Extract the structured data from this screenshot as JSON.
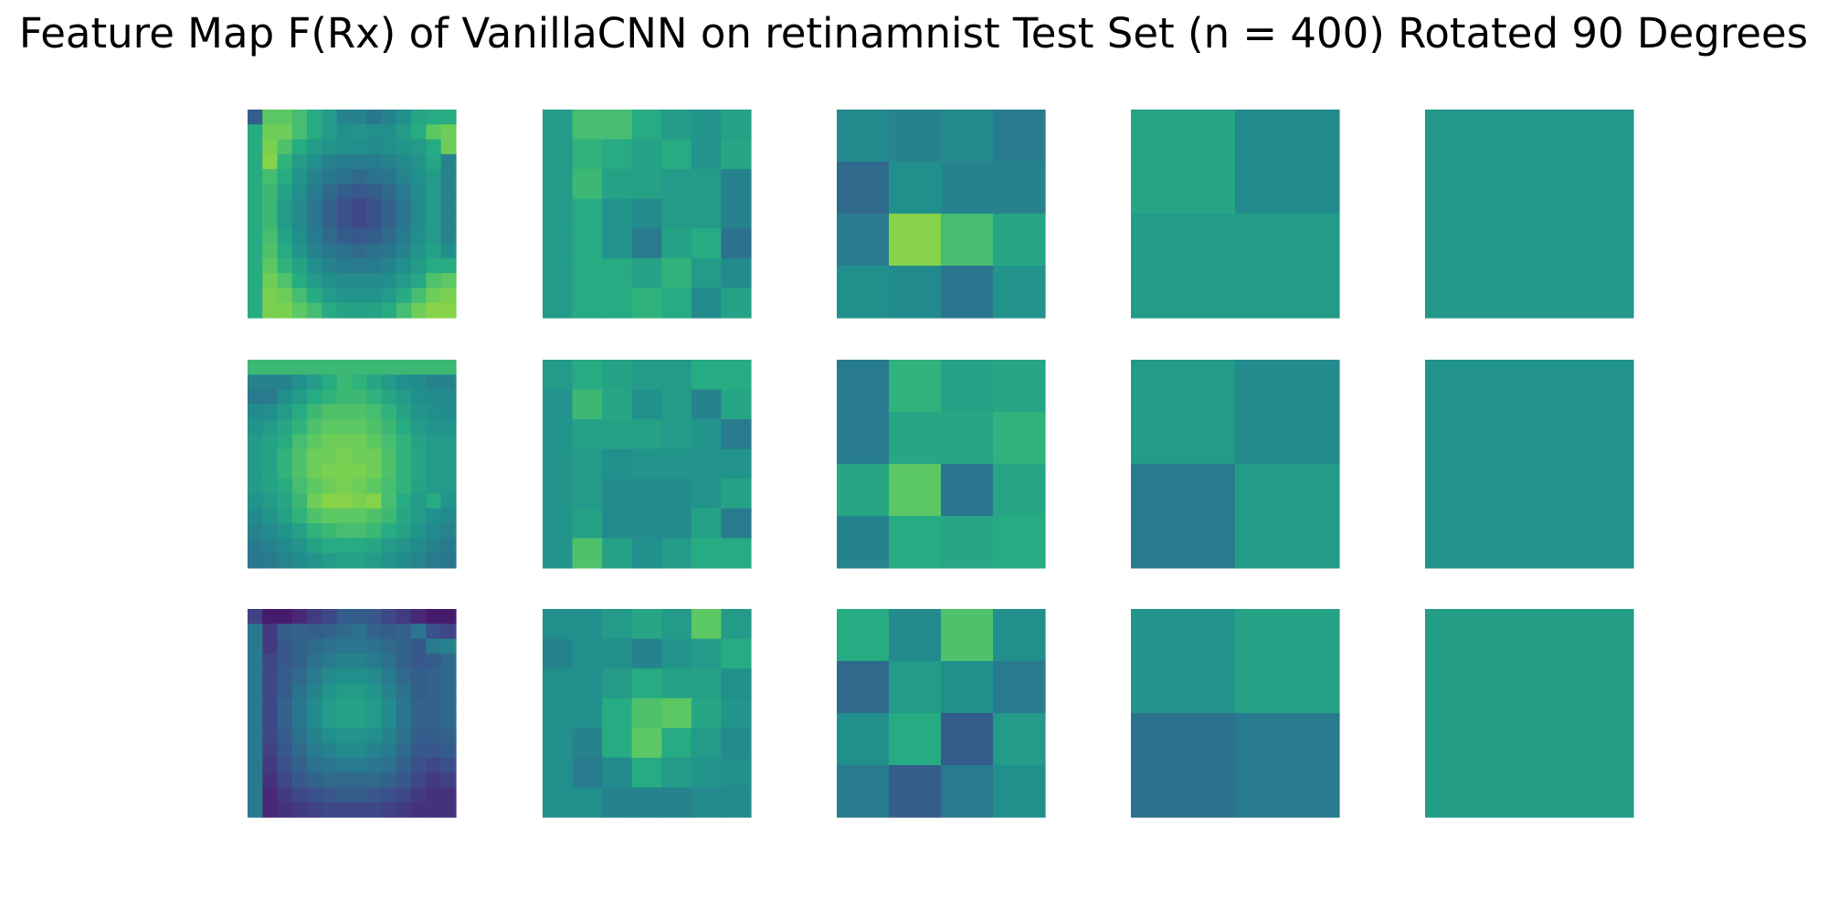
{
  "title": "Feature Map F(Rx) of VanillaCNN on retinamnist Test Set (n = 400) Rotated 90 Degrees",
  "chart_data": {
    "type": "heatmap",
    "title": "Feature Map F(Rx) of VanillaCNN on retinamnist Test Set (n = 400) Rotated 90 Degrees",
    "colormap": "viridis",
    "axes": "off",
    "layout": {
      "rows": 3,
      "columns": 5
    },
    "panel_resolutions": [
      14,
      7,
      4,
      2,
      1
    ],
    "value_range": [
      0,
      1
    ],
    "panels": [
      [
        [
          [
            0.3,
            0.75,
            0.75,
            0.7,
            0.62,
            0.55,
            0.45,
            0.45,
            0.4,
            0.45,
            0.5,
            0.6,
            0.62,
            0.62
          ],
          [
            0.62,
            0.78,
            0.78,
            0.7,
            0.62,
            0.55,
            0.5,
            0.52,
            0.5,
            0.5,
            0.55,
            0.62,
            0.75,
            0.78
          ],
          [
            0.62,
            0.8,
            0.72,
            0.62,
            0.55,
            0.52,
            0.5,
            0.5,
            0.48,
            0.5,
            0.52,
            0.55,
            0.62,
            0.78
          ],
          [
            0.62,
            0.82,
            0.65,
            0.55,
            0.5,
            0.45,
            0.42,
            0.42,
            0.42,
            0.45,
            0.48,
            0.52,
            0.6,
            0.45
          ],
          [
            0.62,
            0.7,
            0.62,
            0.52,
            0.45,
            0.4,
            0.38,
            0.35,
            0.38,
            0.4,
            0.45,
            0.5,
            0.55,
            0.45
          ],
          [
            0.62,
            0.68,
            0.58,
            0.5,
            0.42,
            0.35,
            0.3,
            0.28,
            0.3,
            0.35,
            0.42,
            0.48,
            0.55,
            0.45
          ],
          [
            0.62,
            0.68,
            0.55,
            0.48,
            0.4,
            0.32,
            0.25,
            0.22,
            0.25,
            0.32,
            0.4,
            0.48,
            0.55,
            0.45
          ],
          [
            0.62,
            0.68,
            0.55,
            0.48,
            0.4,
            0.32,
            0.25,
            0.22,
            0.25,
            0.32,
            0.4,
            0.48,
            0.55,
            0.45
          ],
          [
            0.62,
            0.7,
            0.58,
            0.5,
            0.42,
            0.35,
            0.3,
            0.28,
            0.3,
            0.35,
            0.42,
            0.5,
            0.55,
            0.45
          ],
          [
            0.62,
            0.72,
            0.62,
            0.52,
            0.45,
            0.4,
            0.38,
            0.35,
            0.38,
            0.4,
            0.45,
            0.52,
            0.58,
            0.5
          ],
          [
            0.62,
            0.75,
            0.65,
            0.58,
            0.5,
            0.45,
            0.42,
            0.42,
            0.42,
            0.45,
            0.5,
            0.55,
            0.62,
            0.62
          ],
          [
            0.62,
            0.78,
            0.72,
            0.62,
            0.55,
            0.5,
            0.48,
            0.48,
            0.48,
            0.5,
            0.55,
            0.6,
            0.72,
            0.75
          ],
          [
            0.62,
            0.8,
            0.78,
            0.7,
            0.62,
            0.55,
            0.52,
            0.52,
            0.52,
            0.55,
            0.62,
            0.7,
            0.78,
            0.8
          ],
          [
            0.62,
            0.8,
            0.8,
            0.75,
            0.7,
            0.62,
            0.58,
            0.58,
            0.58,
            0.62,
            0.7,
            0.78,
            0.82,
            0.82
          ]
        ],
        [
          [
            0.55,
            0.7,
            0.7,
            0.62,
            0.55,
            0.52,
            0.58
          ],
          [
            0.55,
            0.65,
            0.62,
            0.58,
            0.62,
            0.52,
            0.6
          ],
          [
            0.55,
            0.68,
            0.58,
            0.58,
            0.55,
            0.55,
            0.45
          ],
          [
            0.55,
            0.62,
            0.52,
            0.48,
            0.55,
            0.55,
            0.45
          ],
          [
            0.55,
            0.62,
            0.52,
            0.42,
            0.58,
            0.62,
            0.38
          ],
          [
            0.55,
            0.62,
            0.62,
            0.58,
            0.65,
            0.55,
            0.48
          ],
          [
            0.55,
            0.62,
            0.62,
            0.65,
            0.62,
            0.48,
            0.58
          ]
        ],
        [
          [
            0.48,
            0.45,
            0.48,
            0.42
          ],
          [
            0.35,
            0.5,
            0.45,
            0.45
          ],
          [
            0.42,
            0.82,
            0.7,
            0.6
          ],
          [
            0.5,
            0.48,
            0.4,
            0.52
          ]
        ],
        [
          [
            0.6,
            0.48
          ],
          [
            0.55,
            0.55
          ]
        ],
        [
          [
            0.53
          ]
        ]
      ],
      [
        [
          [
            0.68,
            0.68,
            0.68,
            0.68,
            0.68,
            0.68,
            0.68,
            0.68,
            0.68,
            0.68,
            0.68,
            0.68,
            0.68,
            0.68
          ],
          [
            0.45,
            0.45,
            0.45,
            0.5,
            0.55,
            0.62,
            0.68,
            0.65,
            0.6,
            0.55,
            0.5,
            0.48,
            0.45,
            0.45
          ],
          [
            0.42,
            0.42,
            0.5,
            0.55,
            0.62,
            0.65,
            0.68,
            0.68,
            0.65,
            0.6,
            0.55,
            0.5,
            0.48,
            0.48
          ],
          [
            0.48,
            0.5,
            0.55,
            0.62,
            0.68,
            0.72,
            0.72,
            0.72,
            0.7,
            0.65,
            0.58,
            0.52,
            0.5,
            0.48
          ],
          [
            0.52,
            0.55,
            0.6,
            0.65,
            0.72,
            0.75,
            0.75,
            0.75,
            0.72,
            0.68,
            0.62,
            0.55,
            0.52,
            0.52
          ],
          [
            0.55,
            0.58,
            0.62,
            0.7,
            0.75,
            0.78,
            0.78,
            0.78,
            0.75,
            0.7,
            0.65,
            0.58,
            0.55,
            0.55
          ],
          [
            0.55,
            0.58,
            0.65,
            0.72,
            0.78,
            0.78,
            0.8,
            0.78,
            0.78,
            0.72,
            0.65,
            0.6,
            0.55,
            0.55
          ],
          [
            0.55,
            0.58,
            0.65,
            0.72,
            0.78,
            0.8,
            0.8,
            0.8,
            0.78,
            0.72,
            0.65,
            0.6,
            0.55,
            0.55
          ],
          [
            0.55,
            0.58,
            0.62,
            0.7,
            0.75,
            0.78,
            0.8,
            0.78,
            0.75,
            0.7,
            0.65,
            0.58,
            0.55,
            0.55
          ],
          [
            0.52,
            0.55,
            0.6,
            0.68,
            0.78,
            0.82,
            0.82,
            0.8,
            0.82,
            0.7,
            0.62,
            0.55,
            0.62,
            0.52
          ],
          [
            0.48,
            0.52,
            0.58,
            0.65,
            0.72,
            0.75,
            0.75,
            0.75,
            0.72,
            0.68,
            0.6,
            0.55,
            0.5,
            0.48
          ],
          [
            0.45,
            0.48,
            0.52,
            0.58,
            0.65,
            0.68,
            0.7,
            0.7,
            0.68,
            0.62,
            0.58,
            0.52,
            0.48,
            0.45
          ],
          [
            0.42,
            0.45,
            0.48,
            0.52,
            0.58,
            0.62,
            0.62,
            0.62,
            0.6,
            0.55,
            0.52,
            0.48,
            0.45,
            0.42
          ],
          [
            0.4,
            0.42,
            0.45,
            0.48,
            0.52,
            0.55,
            0.58,
            0.58,
            0.55,
            0.52,
            0.48,
            0.45,
            0.42,
            0.4
          ]
        ],
        [
          [
            0.55,
            0.62,
            0.58,
            0.55,
            0.55,
            0.62,
            0.62
          ],
          [
            0.52,
            0.68,
            0.6,
            0.5,
            0.55,
            0.45,
            0.6
          ],
          [
            0.52,
            0.58,
            0.58,
            0.58,
            0.55,
            0.52,
            0.42
          ],
          [
            0.52,
            0.55,
            0.5,
            0.52,
            0.52,
            0.52,
            0.52
          ],
          [
            0.52,
            0.55,
            0.48,
            0.48,
            0.48,
            0.52,
            0.58
          ],
          [
            0.52,
            0.58,
            0.48,
            0.48,
            0.48,
            0.58,
            0.42
          ],
          [
            0.52,
            0.72,
            0.58,
            0.5,
            0.55,
            0.62,
            0.62
          ]
        ],
        [
          [
            0.42,
            0.65,
            0.58,
            0.6
          ],
          [
            0.42,
            0.6,
            0.6,
            0.65
          ],
          [
            0.6,
            0.75,
            0.4,
            0.6
          ],
          [
            0.45,
            0.62,
            0.6,
            0.62
          ]
        ],
        [
          [
            0.55,
            0.48
          ],
          [
            0.42,
            0.55
          ]
        ],
        [
          [
            0.51
          ]
        ]
      ],
      [
        [
          [
            0.2,
            0.08,
            0.08,
            0.12,
            0.18,
            0.22,
            0.3,
            0.3,
            0.28,
            0.22,
            0.18,
            0.12,
            0.08,
            0.08
          ],
          [
            0.42,
            0.18,
            0.3,
            0.32,
            0.3,
            0.32,
            0.35,
            0.38,
            0.32,
            0.3,
            0.32,
            0.4,
            0.25,
            0.22
          ],
          [
            0.42,
            0.18,
            0.28,
            0.32,
            0.35,
            0.38,
            0.4,
            0.4,
            0.38,
            0.35,
            0.32,
            0.28,
            0.42,
            0.45
          ],
          [
            0.42,
            0.22,
            0.28,
            0.32,
            0.38,
            0.42,
            0.45,
            0.45,
            0.42,
            0.38,
            0.32,
            0.28,
            0.3,
            0.35
          ],
          [
            0.42,
            0.22,
            0.3,
            0.35,
            0.42,
            0.48,
            0.5,
            0.5,
            0.48,
            0.42,
            0.35,
            0.3,
            0.32,
            0.35
          ],
          [
            0.42,
            0.22,
            0.3,
            0.38,
            0.45,
            0.52,
            0.55,
            0.55,
            0.52,
            0.45,
            0.38,
            0.3,
            0.32,
            0.35
          ],
          [
            0.42,
            0.22,
            0.32,
            0.4,
            0.48,
            0.55,
            0.58,
            0.58,
            0.55,
            0.48,
            0.4,
            0.32,
            0.32,
            0.35
          ],
          [
            0.42,
            0.22,
            0.32,
            0.4,
            0.48,
            0.55,
            0.58,
            0.58,
            0.55,
            0.48,
            0.4,
            0.32,
            0.32,
            0.35
          ],
          [
            0.42,
            0.22,
            0.3,
            0.38,
            0.45,
            0.5,
            0.52,
            0.52,
            0.5,
            0.45,
            0.38,
            0.3,
            0.3,
            0.32
          ],
          [
            0.42,
            0.2,
            0.28,
            0.35,
            0.42,
            0.45,
            0.48,
            0.48,
            0.45,
            0.42,
            0.35,
            0.28,
            0.28,
            0.3
          ],
          [
            0.42,
            0.18,
            0.25,
            0.32,
            0.38,
            0.4,
            0.42,
            0.42,
            0.4,
            0.38,
            0.32,
            0.25,
            0.22,
            0.25
          ],
          [
            0.42,
            0.15,
            0.22,
            0.28,
            0.32,
            0.35,
            0.35,
            0.35,
            0.35,
            0.32,
            0.28,
            0.22,
            0.18,
            0.2
          ],
          [
            0.42,
            0.12,
            0.18,
            0.22,
            0.25,
            0.28,
            0.3,
            0.3,
            0.28,
            0.25,
            0.22,
            0.18,
            0.15,
            0.15
          ],
          [
            0.42,
            0.12,
            0.15,
            0.18,
            0.2,
            0.22,
            0.22,
            0.22,
            0.22,
            0.2,
            0.18,
            0.15,
            0.15,
            0.15
          ]
        ],
        [
          [
            0.5,
            0.5,
            0.55,
            0.6,
            0.55,
            0.75,
            0.55
          ],
          [
            0.45,
            0.5,
            0.5,
            0.45,
            0.52,
            0.55,
            0.62
          ],
          [
            0.5,
            0.5,
            0.55,
            0.62,
            0.58,
            0.58,
            0.5
          ],
          [
            0.5,
            0.5,
            0.62,
            0.72,
            0.75,
            0.6,
            0.52
          ],
          [
            0.5,
            0.45,
            0.62,
            0.75,
            0.62,
            0.55,
            0.48
          ],
          [
            0.5,
            0.42,
            0.48,
            0.62,
            0.55,
            0.52,
            0.5
          ],
          [
            0.5,
            0.5,
            0.45,
            0.45,
            0.45,
            0.48,
            0.48
          ]
        ],
        [
          [
            0.62,
            0.48,
            0.72,
            0.5
          ],
          [
            0.35,
            0.55,
            0.5,
            0.42
          ],
          [
            0.5,
            0.62,
            0.3,
            0.55
          ],
          [
            0.42,
            0.3,
            0.42,
            0.5
          ]
        ],
        [
          [
            0.52,
            0.58
          ],
          [
            0.38,
            0.42
          ]
        ],
        [
          [
            0.56
          ]
        ]
      ]
    ]
  }
}
